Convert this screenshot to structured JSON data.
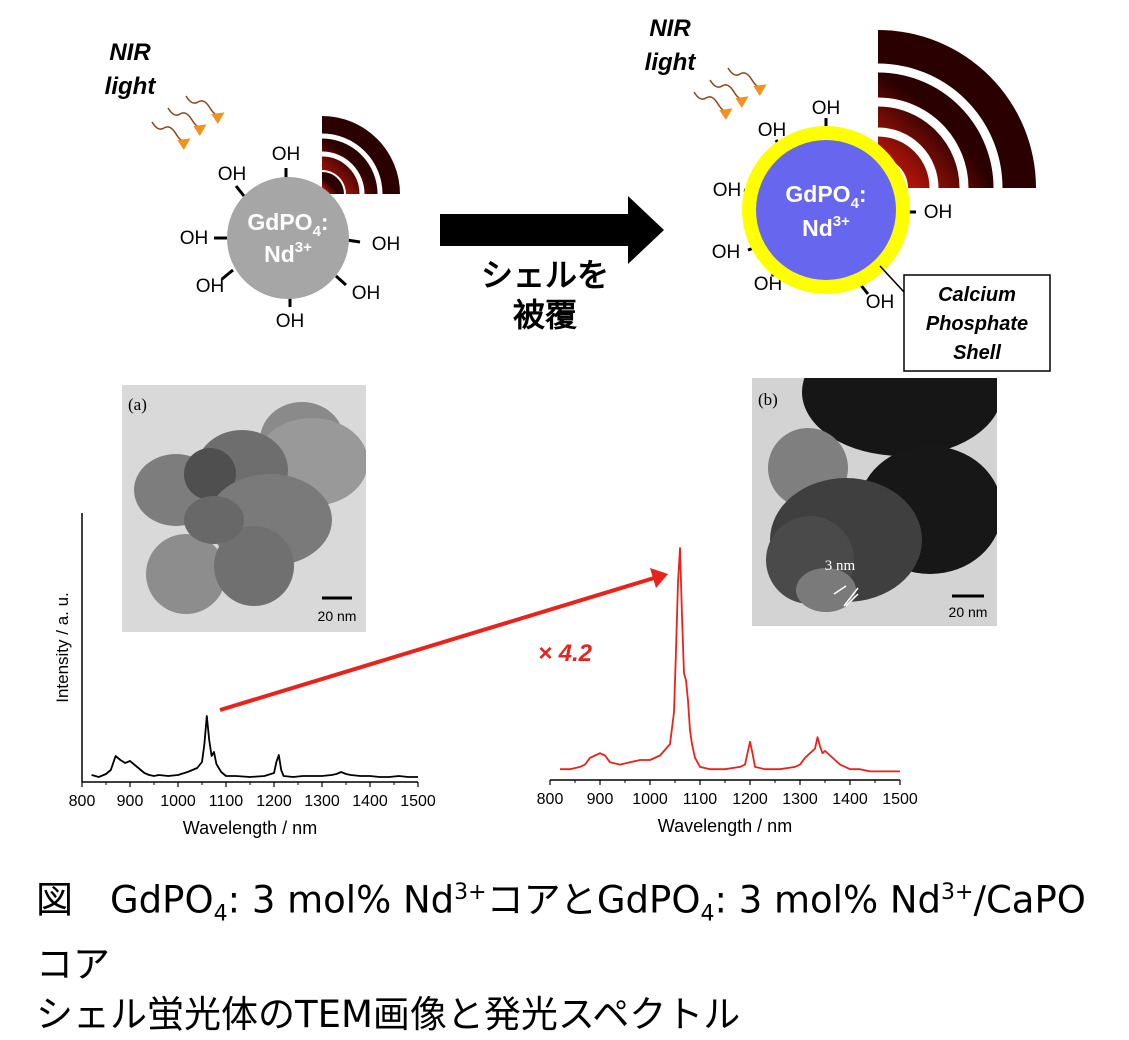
{
  "scheme": {
    "nir_label_line1": "NIR",
    "nir_label_line2": "light",
    "core_label_line1": "GdPO",
    "core_label_sub": "4",
    "core_label_colon": ":",
    "core_label_line2": "Nd",
    "core_label_sup": "3+",
    "oh": "OH",
    "arrow_label_line1": "シェルを",
    "arrow_label_line2": "被覆",
    "shell_label_line1": "Calcium",
    "shell_label_line2": "Phosphate",
    "shell_label_line3": "Shell",
    "colors": {
      "core_uncoated": "#a6a6a6",
      "core_coated": "#6666ee",
      "shell": "#ffff00",
      "emission_red": "#e8231b",
      "nir_arrow": "#f0931e"
    }
  },
  "tem": {
    "a_label": "(a)",
    "b_label": "(b)",
    "scale_a": "20 nm",
    "scale_b": "20 nm",
    "shell_thickness": "3 nm"
  },
  "enhancement_label": "× 4.2",
  "chart_data": [
    {
      "type": "line",
      "ylabel": "Intensity / a. u.",
      "xlabel": "Wavelength / nm",
      "xlim": [
        800,
        1500
      ],
      "x_ticks": [
        800,
        900,
        1000,
        1100,
        1200,
        1300,
        1400,
        1500
      ],
      "series": [
        {
          "color": "#000000",
          "x": [
            820,
            835,
            850,
            860,
            870,
            880,
            890,
            900,
            910,
            920,
            930,
            940,
            950,
            960,
            980,
            1000,
            1020,
            1040,
            1050,
            1055,
            1060,
            1065,
            1070,
            1075,
            1080,
            1090,
            1100,
            1120,
            1150,
            1180,
            1200,
            1205,
            1210,
            1215,
            1220,
            1240,
            1260,
            1300,
            1320,
            1330,
            1340,
            1350,
            1360,
            1380,
            1400,
            1420,
            1440,
            1460,
            1480,
            1500
          ],
          "y": [
            0.03,
            0.01,
            0.04,
            0.08,
            0.22,
            0.18,
            0.15,
            0.17,
            0.13,
            0.09,
            0.05,
            0.03,
            0.02,
            0.03,
            0.02,
            0.03,
            0.06,
            0.1,
            0.16,
            0.34,
            0.62,
            0.38,
            0.22,
            0.26,
            0.14,
            0.06,
            0.02,
            0.02,
            0.01,
            0.02,
            0.05,
            0.16,
            0.23,
            0.08,
            0.02,
            0.01,
            0.02,
            0.02,
            0.03,
            0.04,
            0.06,
            0.04,
            0.03,
            0.02,
            0.02,
            0.01,
            0.01,
            0.02,
            0.01,
            0.01
          ]
        }
      ]
    },
    {
      "type": "line",
      "xlabel": "Wavelength / nm",
      "xlim": [
        800,
        1500
      ],
      "x_ticks": [
        800,
        900,
        1000,
        1100,
        1200,
        1300,
        1400,
        1500
      ],
      "series": [
        {
          "color": "#e8231b",
          "x": [
            820,
            840,
            860,
            870,
            880,
            890,
            900,
            910,
            920,
            940,
            960,
            980,
            1000,
            1020,
            1040,
            1048,
            1052,
            1056,
            1060,
            1064,
            1068,
            1072,
            1076,
            1080,
            1084,
            1090,
            1100,
            1120,
            1150,
            1180,
            1190,
            1195,
            1200,
            1205,
            1210,
            1230,
            1260,
            1290,
            1300,
            1310,
            1320,
            1330,
            1335,
            1340,
            1345,
            1350,
            1360,
            1370,
            1380,
            1400,
            1420,
            1440,
            1460,
            1480,
            1500
          ],
          "y": [
            0.03,
            0.03,
            0.04,
            0.05,
            0.08,
            0.09,
            0.1,
            0.09,
            0.06,
            0.05,
            0.06,
            0.07,
            0.07,
            0.09,
            0.14,
            0.28,
            0.55,
            0.85,
            1.0,
            0.7,
            0.45,
            0.42,
            0.33,
            0.2,
            0.14,
            0.08,
            0.04,
            0.03,
            0.03,
            0.04,
            0.05,
            0.1,
            0.15,
            0.1,
            0.04,
            0.03,
            0.03,
            0.04,
            0.05,
            0.08,
            0.1,
            0.12,
            0.17,
            0.13,
            0.1,
            0.11,
            0.09,
            0.07,
            0.05,
            0.03,
            0.03,
            0.02,
            0.02,
            0.02,
            0.02
          ]
        }
      ]
    }
  ],
  "caption": {
    "line1_prefix": "図　GdPO",
    "line1_sub1": "4",
    "line1_mid": ": 3 mol% Nd",
    "line1_sup1": "3+",
    "line1_mid2": "コアとGdPO",
    "line1_sub2": "4",
    "line1_mid3": ": 3 mol% Nd",
    "line1_sup2": "3+",
    "line1_end": "/CaPOコア",
    "line2": "シェル蛍光体のTEM画像と発光スペクトル"
  }
}
